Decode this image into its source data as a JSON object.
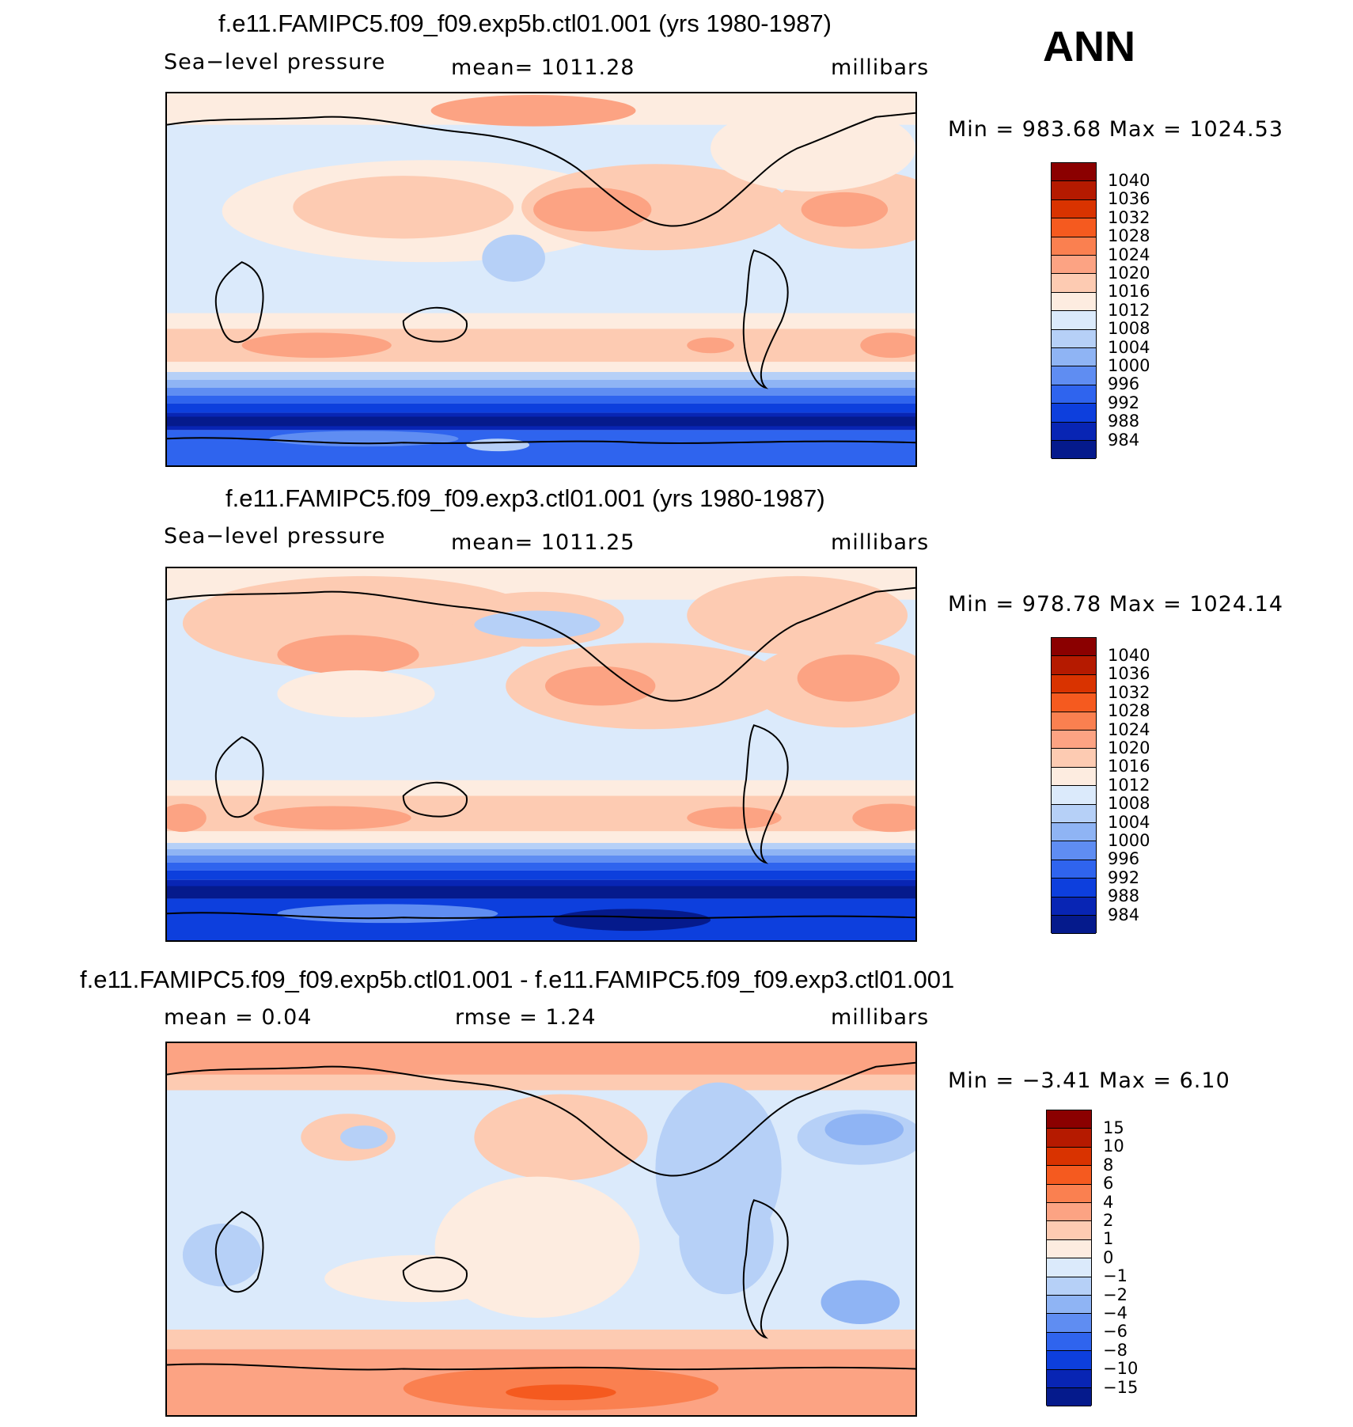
{
  "season": "ANN",
  "units": "millibars",
  "panels": [
    {
      "title": "f.e11.FAMIPC5.f09_f09.exp5b.ctl01.001 (yrs 1980-1987)",
      "variable": "Sea−level pressure",
      "mean_text": "mean=  1011.28",
      "minmax_text": "Min  =  983.68  Max  =  1024.53",
      "min": 983.68,
      "max": 1024.53
    },
    {
      "title": "f.e11.FAMIPC5.f09_f09.exp3.ctl01.001 (yrs 1980-1987)",
      "variable": "Sea−level pressure",
      "mean_text": "mean=  1011.25",
      "minmax_text": "Min  =  978.78  Max  =  1024.14",
      "min": 978.78,
      "max": 1024.14
    },
    {
      "title": "f.e11.FAMIPC5.f09_f09.exp5b.ctl01.001 - f.e11.FAMIPC5.f09_f09.exp3.ctl01.001",
      "mean_text": "mean  =     0.04",
      "rmse_text": "rmse  =      1.24",
      "minmax_text": "Min  =    −3.41  Max  =     6.10",
      "min": -3.41,
      "max": 6.1
    }
  ],
  "colorbars": {
    "slp": {
      "labels": [
        "1040",
        "1036",
        "1032",
        "1028",
        "1024",
        "1020",
        "1016",
        "1012",
        "1008",
        "1004",
        "1000",
        "996",
        "992",
        "988",
        "984"
      ],
      "colors": [
        "#8b0000",
        "#b51a00",
        "#d93300",
        "#f55a1f",
        "#fa8050",
        "#fca383",
        "#fdcbb2",
        "#fdece0",
        "#dbeafb",
        "#b6d0f7",
        "#8fb4f4",
        "#5f8df2",
        "#2f64ee",
        "#0d3fdd",
        "#0825b4",
        "#051a8c"
      ]
    },
    "diff": {
      "labels": [
        "15",
        "10",
        "8",
        "6",
        "4",
        "2",
        "1",
        "0",
        "−1",
        "−2",
        "−4",
        "−6",
        "−8",
        "−10",
        "−15"
      ],
      "colors": [
        "#8b0000",
        "#b51a00",
        "#d93300",
        "#f55a1f",
        "#fa8050",
        "#fca383",
        "#fdcbb2",
        "#fdece0",
        "#dbeafb",
        "#b6d0f7",
        "#8fb4f4",
        "#5f8df2",
        "#2f64ee",
        "#0d3fdd",
        "#0825b4",
        "#051a8c"
      ]
    }
  }
}
